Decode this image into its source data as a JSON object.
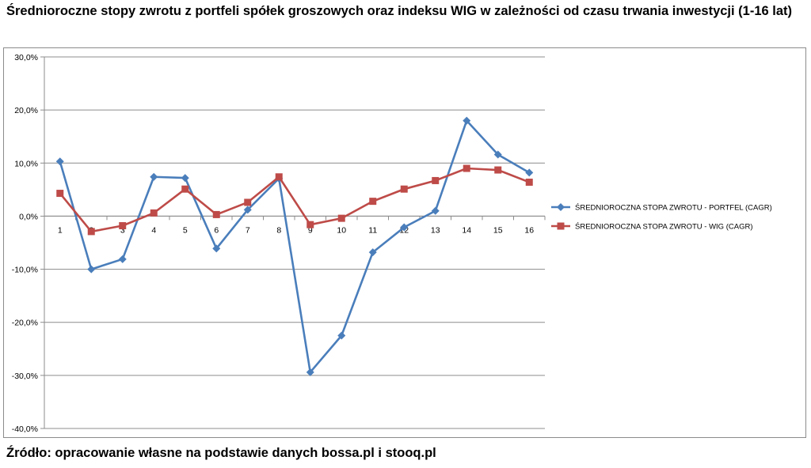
{
  "title": "Średnioroczne stopy zwrotu z portfeli spółek groszowych oraz indeksu WIG w zależności od czasu trwania inwestycji (1-16 lat)",
  "source": "Źródło: opracowanie własne na podstawie danych bossa.pl i stooq.pl",
  "chart_data": {
    "type": "line",
    "categories": [
      "1",
      "2",
      "3",
      "4",
      "5",
      "6",
      "7",
      "8",
      "9",
      "10",
      "11",
      "12",
      "13",
      "14",
      "15",
      "16"
    ],
    "ylim": [
      -40,
      30
    ],
    "yticks": [
      "30,0%",
      "20,0%",
      "10,0%",
      "0,0%",
      "-10,0%",
      "-20,0%",
      "-30,0%",
      "-40,0%"
    ],
    "ytick_values": [
      30,
      20,
      10,
      0,
      -10,
      -20,
      -30,
      -40
    ],
    "grid": true,
    "legend_position": "right",
    "series": [
      {
        "name": "ŚREDNIOROCZNA STOPA ZWROTU - PORTFEL (CAGR)",
        "color": "#4a7ebb",
        "marker": "diamond",
        "values": [
          10.3,
          -10.0,
          -8.1,
          7.4,
          7.2,
          -6.1,
          1.2,
          7.1,
          -29.4,
          -22.5,
          -6.8,
          -2.1,
          1.0,
          18.0,
          11.6,
          8.2
        ]
      },
      {
        "name": "ŚREDNIOROCZNA STOPA ZWROTU - WIG (CAGR)",
        "color": "#be4b48",
        "marker": "square",
        "values": [
          4.3,
          -2.9,
          -1.8,
          0.6,
          5.1,
          0.3,
          2.6,
          7.4,
          -1.6,
          -0.4,
          2.8,
          5.1,
          6.7,
          9.0,
          8.7,
          6.4
        ]
      }
    ]
  }
}
